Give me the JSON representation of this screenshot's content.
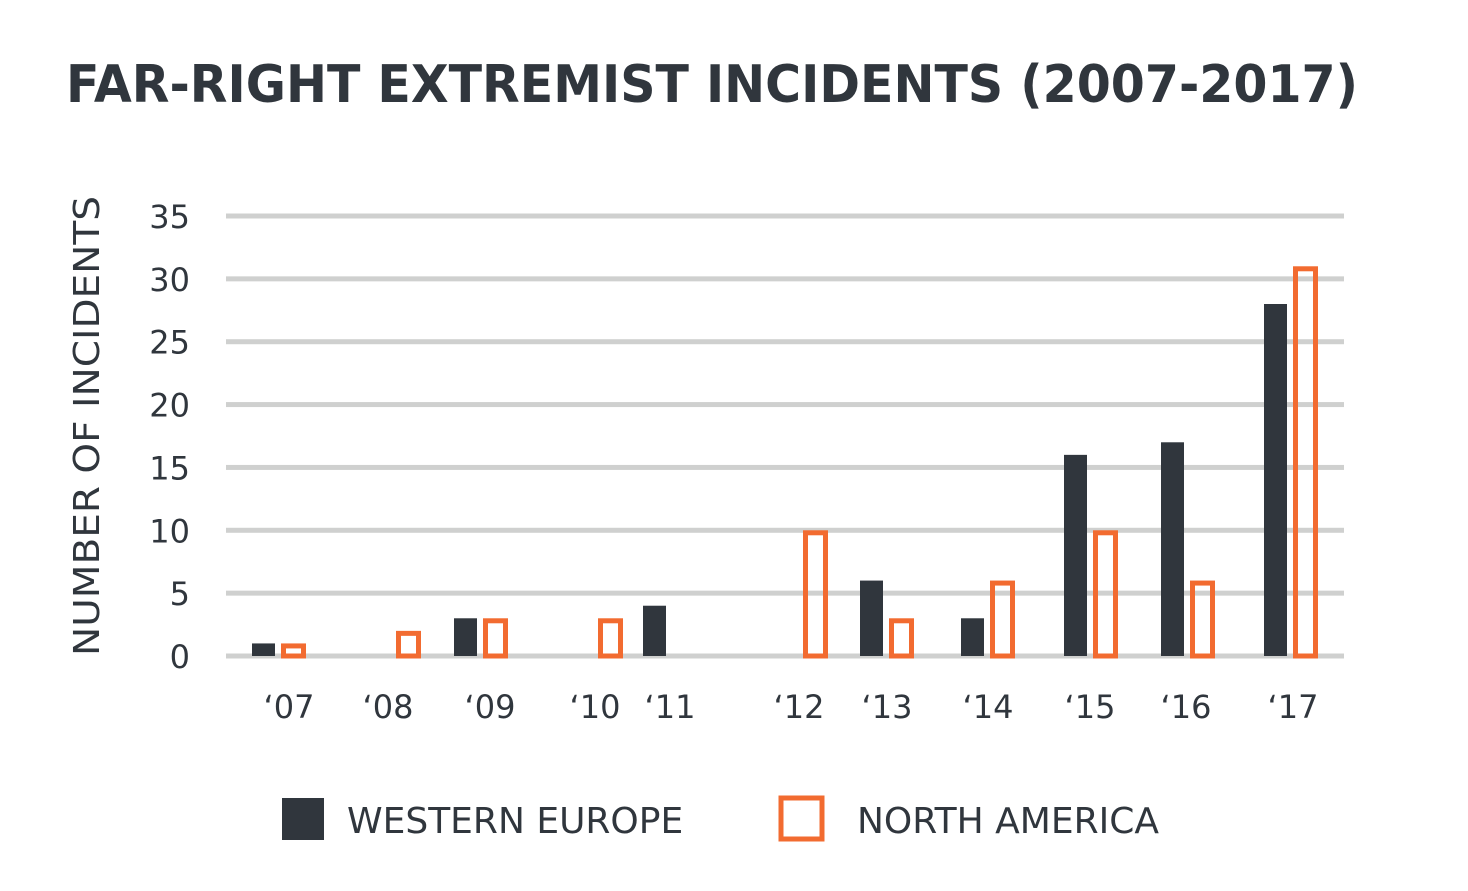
{
  "chart_data": {
    "type": "bar",
    "title": "FAR-RIGHT EXTREMIST INCIDENTS (2007-2017)",
    "xlabel": "",
    "ylabel": "NUMBER OF INCIDENTS",
    "ylim": [
      0,
      35
    ],
    "yticks": [
      "0",
      "5",
      "10",
      "15",
      "20",
      "25",
      "30",
      "35"
    ],
    "grid": true,
    "legend_position": "bottom",
    "categories": [
      "‘07",
      "‘08",
      "‘09",
      "‘10",
      "‘11",
      "‘12",
      "‘13",
      "‘14",
      "‘15",
      "‘16",
      "‘17"
    ],
    "series": [
      {
        "name": "WESTERN EUROPE",
        "color": "#30363d",
        "style": "filled",
        "values": [
          1,
          0,
          3,
          0,
          4,
          0,
          6,
          3,
          16,
          17,
          28
        ]
      },
      {
        "name": "NORTH AMERICA",
        "color": "#f26b30",
        "style": "outline",
        "values": [
          1,
          2,
          3,
          3,
          0,
          10,
          3,
          6,
          10,
          6,
          31
        ]
      }
    ]
  }
}
